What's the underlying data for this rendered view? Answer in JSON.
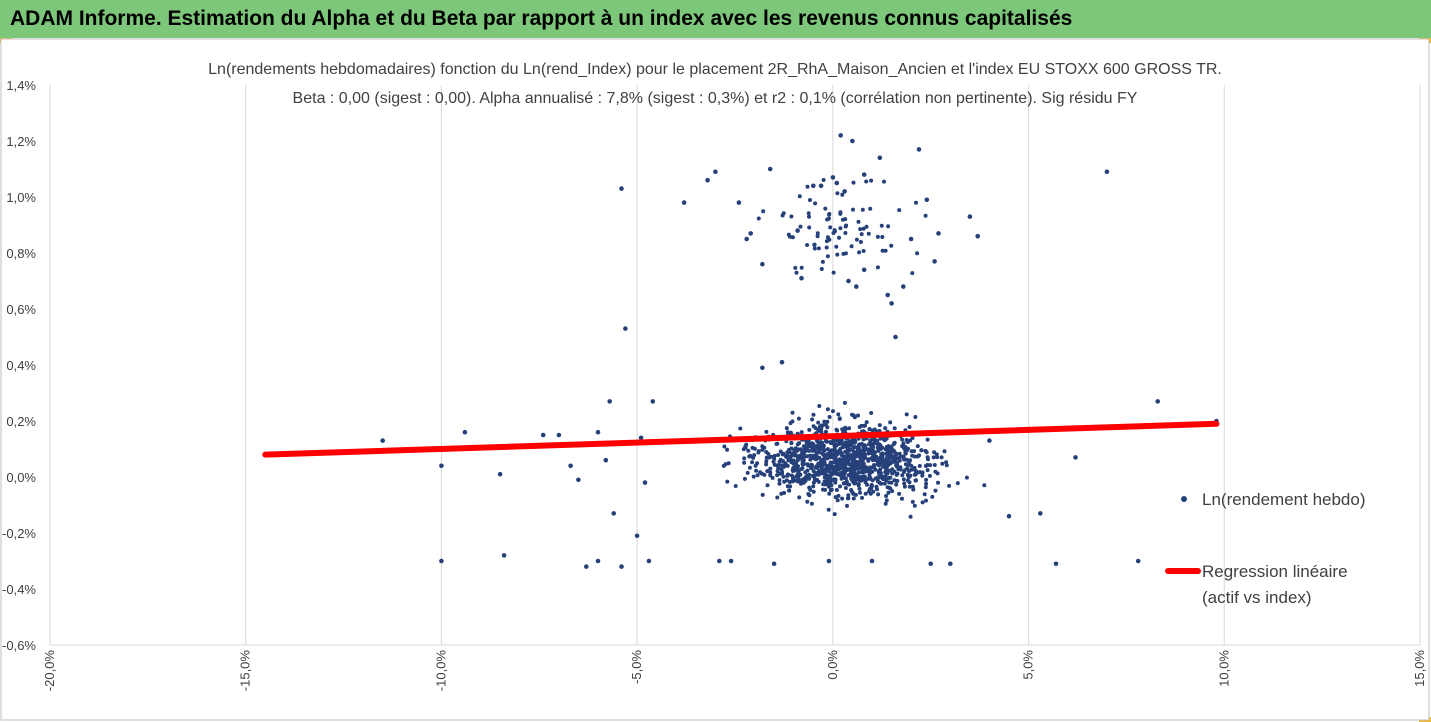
{
  "header": {
    "title": "ADAM Informe. Estimation du Alpha et du Beta par rapport à un index avec les revenus connus capitalisés"
  },
  "colors": {
    "banner": "#7dc77a",
    "corner_accent": "#f2b92b",
    "points": "#26407a",
    "regression": "#ff0000",
    "gridline": "#d9d9d9",
    "axis_text": "#404040"
  },
  "chart_data": {
    "type": "scatter",
    "title_line1": "Ln(rendements hebdomadaires) fonction du Ln(rend_Index) pour le placement 2R_RhA_Maison_Ancien et l'index EU STOXX 600 GROSS TR.",
    "title_line2": "Beta : 0,00 (sigest : 0,00). Alpha annualisé : 7,8% (sigest : 0,3%) et r2 : 0,1% (corrélation non pertinente). Sig résidu FY",
    "xlim": [
      -0.2,
      0.15
    ],
    "ylim": [
      -0.006,
      0.014
    ],
    "x_ticks": [
      "-20,0%",
      "-15,0%",
      "-10,0%",
      "-5,0%",
      "0,0%",
      "5,0%",
      "10,0%",
      "15,0%"
    ],
    "y_ticks": [
      "-0,6%",
      "-0,4%",
      "-0,2%",
      "0,0%",
      "0,2%",
      "0,4%",
      "0,6%",
      "0,8%",
      "1,0%",
      "1,2%",
      "1,4%"
    ],
    "grid": {
      "vertical": true,
      "horizontal": false
    },
    "legend_position": "right",
    "legend": [
      {
        "label": "Ln(rendement hebdo)",
        "marker": "dot"
      },
      {
        "label_line1": "Regression linéaire",
        "label_line2": "(actif vs index)",
        "marker": "line"
      }
    ],
    "regression": {
      "x": [
        -0.145,
        0.098
      ],
      "y": [
        0.0008,
        0.0019
      ]
    },
    "series_points": [
      [
        -0.145,
        0.0008
      ],
      [
        -0.14,
        0.0008
      ],
      [
        -0.115,
        0.0013
      ],
      [
        -0.1,
        0.0004
      ],
      [
        -0.1,
        -0.003
      ],
      [
        -0.094,
        0.0016
      ],
      [
        -0.085,
        0.0001
      ],
      [
        -0.084,
        -0.0028
      ],
      [
        -0.078,
        0.0011
      ],
      [
        -0.074,
        0.0015
      ],
      [
        -0.07,
        0.0015
      ],
      [
        -0.067,
        0.0004
      ],
      [
        -0.065,
        -0.0001
      ],
      [
        -0.063,
        -0.0032
      ],
      [
        -0.06,
        0.0016
      ],
      [
        -0.06,
        -0.003
      ],
      [
        -0.058,
        0.0006
      ],
      [
        -0.057,
        0.0027
      ],
      [
        -0.056,
        -0.0013
      ],
      [
        -0.054,
        0.0103
      ],
      [
        -0.053,
        0.0053
      ],
      [
        -0.054,
        -0.0032
      ],
      [
        -0.05,
        -0.0021
      ],
      [
        -0.049,
        0.0014
      ],
      [
        -0.048,
        -0.0002
      ],
      [
        -0.047,
        -0.003
      ],
      [
        -0.046,
        0.0027
      ],
      [
        -0.038,
        0.0098
      ],
      [
        -0.032,
        0.0106
      ],
      [
        -0.03,
        0.0109
      ],
      [
        -0.029,
        -0.003
      ],
      [
        -0.026,
        -0.003
      ],
      [
        -0.024,
        0.0098
      ],
      [
        -0.022,
        0.0085
      ],
      [
        -0.021,
        0.0087
      ],
      [
        -0.018,
        0.0039
      ],
      [
        -0.018,
        0.0076
      ],
      [
        -0.016,
        0.011
      ],
      [
        -0.015,
        -0.0031
      ],
      [
        -0.013,
        0.0041
      ],
      [
        -0.009,
        0.0088
      ],
      [
        -0.008,
        0.0071
      ],
      [
        -0.005,
        0.0104
      ],
      [
        -0.003,
        0.0104
      ],
      [
        -0.001,
        -0.003
      ],
      [
        0.0,
        0.0107
      ],
      [
        0.001,
        0.0105
      ],
      [
        0.002,
        0.0122
      ],
      [
        0.003,
        0.0102
      ],
      [
        0.004,
        0.007
      ],
      [
        0.005,
        0.012
      ],
      [
        0.006,
        0.0068
      ],
      [
        0.008,
        0.0074
      ],
      [
        0.008,
        0.0108
      ],
      [
        0.01,
        -0.003
      ],
      [
        0.012,
        0.0114
      ],
      [
        0.014,
        0.0065
      ],
      [
        0.015,
        0.0062
      ],
      [
        0.016,
        0.005
      ],
      [
        0.018,
        0.0068
      ],
      [
        0.02,
        0.0085
      ],
      [
        0.022,
        0.0117
      ],
      [
        0.024,
        0.0099
      ],
      [
        0.025,
        -0.0031
      ],
      [
        0.026,
        0.0077
      ],
      [
        0.027,
        0.0087
      ],
      [
        0.03,
        -0.0031
      ],
      [
        0.035,
        0.0093
      ],
      [
        0.037,
        0.0086
      ],
      [
        0.04,
        0.0013
      ],
      [
        0.045,
        -0.0014
      ],
      [
        0.053,
        -0.0013
      ],
      [
        0.057,
        -0.0031
      ],
      [
        0.062,
        0.0007
      ],
      [
        0.07,
        0.0109
      ],
      [
        0.078,
        -0.003
      ],
      [
        0.083,
        0.0027
      ],
      [
        0.098,
        0.002
      ]
    ]
  }
}
